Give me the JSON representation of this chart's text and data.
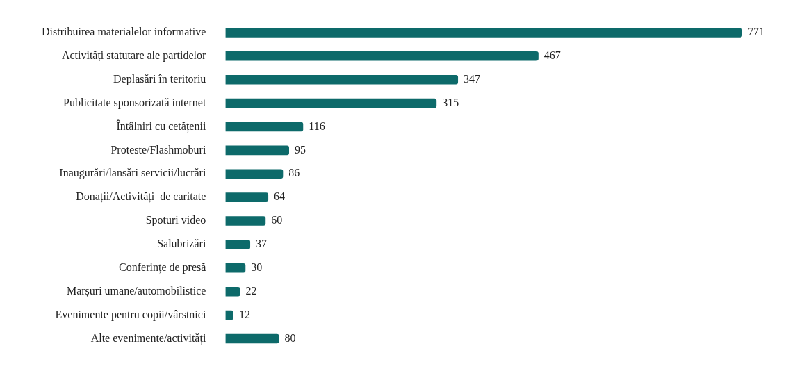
{
  "chart_data": {
    "type": "bar",
    "orientation": "horizontal",
    "categories": [
      "Distribuirea materialelor informative",
      "Activități statutare ale partidelor",
      "Deplasări în teritoriu",
      "Publicitate sponsorizată internet",
      "Întâlniri cu cetățenii",
      "Proteste/Flashmoburi",
      "Inaugurări/lansări servicii/lucrări",
      "Donații/Activități  de caritate",
      "Spoturi video",
      "Salubrizări",
      "Conferințe de presă",
      "Marșuri umane/automobilistice",
      "Evenimente pentru copii/vârstnici",
      "Alte evenimente/activități"
    ],
    "values": [
      771,
      467,
      347,
      315,
      116,
      95,
      86,
      64,
      60,
      37,
      30,
      22,
      12,
      80
    ],
    "color": "#0d6a6a",
    "data_labels": true,
    "tick_labels": "y"
  }
}
